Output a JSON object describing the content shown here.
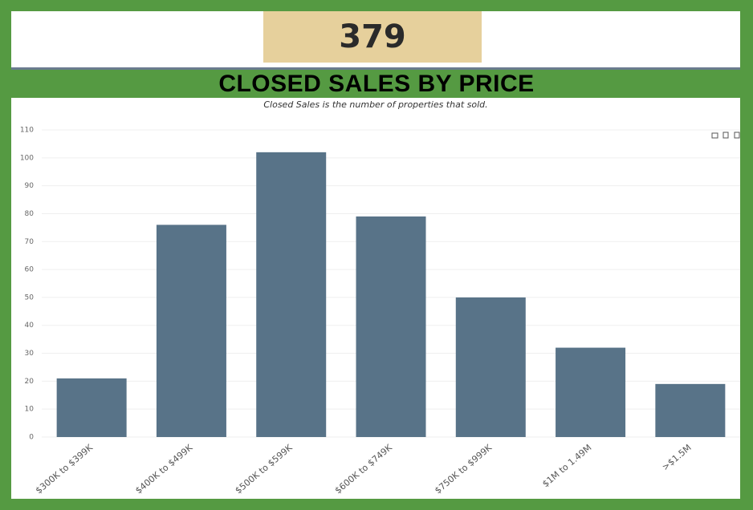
{
  "kpi": {
    "value": "379"
  },
  "chart_data": {
    "type": "bar",
    "title": "CLOSED SALES BY PRICE",
    "subtitle": "Closed Sales is the number of properties that sold.",
    "categories": [
      "$300K to $399K",
      "$400K to $499K",
      "$500K to $599K",
      "$600K to $749K",
      "$750K to $999K",
      "$1M to 1.49M",
      ">$1.5M"
    ],
    "values": [
      21,
      76,
      102,
      79,
      50,
      32,
      19
    ],
    "color": "#587388",
    "ylim": [
      0,
      110
    ],
    "yticks": [
      0,
      10,
      20,
      30,
      40,
      50,
      60,
      70,
      80,
      90,
      100,
      110
    ],
    "grid": true
  }
}
